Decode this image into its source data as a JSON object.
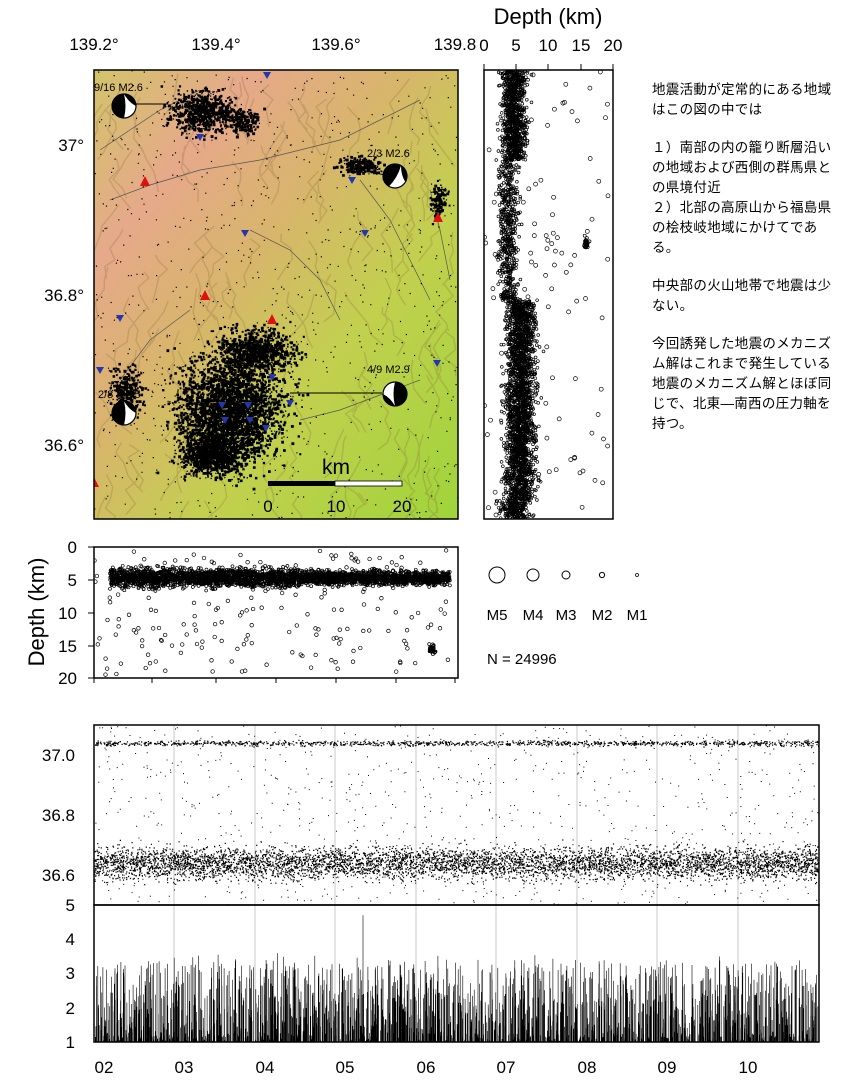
{
  "map": {
    "lon_ticks": [
      "139.2°",
      "139.4°",
      "139.6°",
      "139.8"
    ],
    "lat_ticks": [
      "37°",
      "36.8°",
      "36.6°"
    ],
    "scale_label": "km",
    "scale_ticks": [
      "0",
      "10",
      "20"
    ],
    "mechanisms": [
      {
        "label": "9/16 M2.6"
      },
      {
        "label": "2/3 M2.6"
      },
      {
        "label": "2/8 M2.5"
      },
      {
        "label": "4/9 M2.9"
      }
    ],
    "colors": {
      "shade_low": "#9fd43a",
      "shade_high": "#e6a98a",
      "volcano": "#e01010",
      "station": "#2436b0"
    }
  },
  "depth_lat": {
    "title": "Depth (km)",
    "ticks": [
      "0",
      "5",
      "10",
      "15",
      "20"
    ]
  },
  "depth_lon": {
    "title": "Depth (km)",
    "ticks": [
      "0",
      "5",
      "10",
      "15",
      "20"
    ]
  },
  "legend": {
    "labels": [
      "M5",
      "M4",
      "M3",
      "M2",
      "M1"
    ],
    "count": "N = 24996"
  },
  "description": [
    "地震活動が定常的にある地域はこの図の中では",
    "１）南部の内の籠り断層沿いの地域および西側の群馬県との県境付近",
    "２）北部の高原山から福島県の桧枝岐地域にかけてである。",
    "中央部の火山地帯で地震は少ない。",
    "今回誘発した地震のメカニズム解はこれまで発生している地震のメカニズム解とほぼ同じで、北東―南西の圧力軸を持つ。"
  ],
  "chart_data": [
    {
      "type": "scatter",
      "title": "",
      "xlabel": "",
      "ylabel": "",
      "x_ticks": [
        "02",
        "03",
        "04",
        "05",
        "06",
        "07",
        "08",
        "09",
        "10"
      ],
      "y_ticks": [
        "37.0",
        "36.8",
        "36.6"
      ],
      "ylim": [
        36.5,
        37.1
      ]
    },
    {
      "type": "bar",
      "title": "",
      "xlabel": "",
      "ylabel": "",
      "x_ticks": [
        "02",
        "03",
        "04",
        "05",
        "06",
        "07",
        "08",
        "09",
        "10"
      ],
      "y_ticks": [
        "5",
        "4",
        "3",
        "2",
        "1"
      ],
      "ylim": [
        1,
        5
      ]
    }
  ]
}
